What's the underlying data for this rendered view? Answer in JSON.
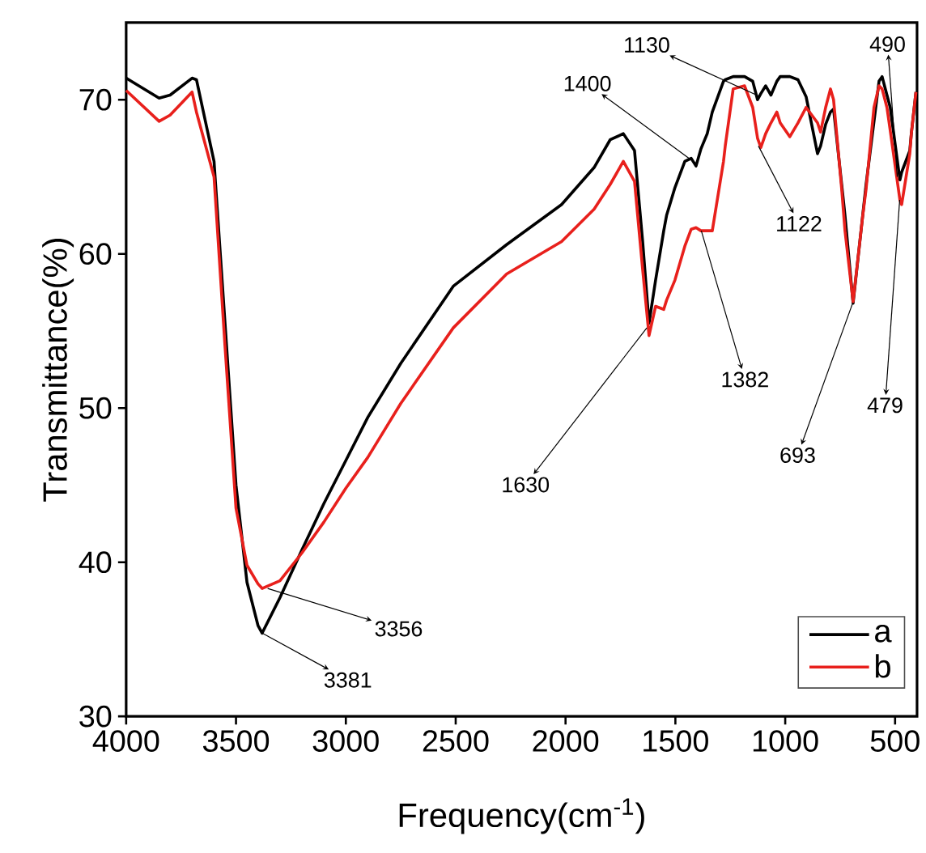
{
  "chart_data": {
    "type": "line",
    "xlabel": "Frequency(cm$^{-1}$)",
    "ylabel": "Transmittance(%)",
    "xlim": [
      4000,
      400
    ],
    "ylim": [
      30,
      75
    ],
    "xticks": [
      4000,
      3500,
      3000,
      2500,
      2000,
      1500,
      1000,
      500
    ],
    "yticks": [
      30,
      40,
      50,
      60,
      70
    ],
    "grid": false,
    "legend": "bottom right",
    "marker": "none",
    "line_style": "solid",
    "x": [
      4000,
      3850,
      3800,
      3700,
      3680,
      3600,
      3550,
      3500,
      3450,
      3400,
      3381,
      3300,
      3200,
      3100,
      3000,
      2900,
      2750,
      2511,
      2268,
      2018,
      1870,
      1797,
      1737,
      1686,
      1649,
      1620,
      1590,
      1553,
      1540,
      1502,
      1457,
      1428,
      1406,
      1384,
      1355,
      1332,
      1281,
      1273,
      1237,
      1185,
      1148,
      1126,
      1111,
      1089,
      1065,
      1038,
      1023,
      979,
      942,
      905,
      853,
      839,
      816,
      794,
      780,
      743,
      728,
      691,
      647,
      632,
      596,
      573,
      559,
      537,
      522,
      478,
      470,
      433,
      426,
      405
    ],
    "series": [
      {
        "name": "a",
        "color": "#000000",
        "values": [
          71.4,
          70.1,
          70.3,
          71.4,
          71.3,
          66,
          55.5,
          45,
          38.7,
          35.9,
          35.4,
          37.7,
          40.8,
          43.8,
          46.6,
          49.4,
          52.9,
          57.9,
          60.6,
          63.2,
          65.6,
          67.4,
          67.8,
          66.7,
          60.8,
          55.5,
          58.3,
          61.5,
          62.5,
          64.3,
          66,
          66.2,
          65.7,
          66.8,
          67.8,
          69.2,
          71.2,
          71.3,
          71.5,
          71.5,
          71.2,
          70,
          70.4,
          70.9,
          70.3,
          71.2,
          71.5,
          71.5,
          71.3,
          70.2,
          66.5,
          67,
          68.4,
          69.2,
          69.4,
          64.5,
          62.5,
          56.8,
          null,
          64.5,
          null,
          71.2,
          71.5,
          70.3,
          69.5,
          64.8,
          65.3,
          66.7,
          67.8,
          70.5
        ]
      },
      {
        "name": "b",
        "color": "#e8201c",
        "values": [
          70.6,
          68.6,
          69,
          70.5,
          69.2,
          65,
          54,
          43.5,
          39.8,
          38.6,
          38.3,
          38.8,
          40.6,
          42.6,
          44.8,
          46.8,
          50.3,
          55.2,
          58.7,
          60.8,
          62.9,
          64.5,
          66,
          64.7,
          59,
          54.7,
          56.6,
          56.4,
          57,
          58.3,
          60.5,
          61.6,
          61.7,
          61.5,
          61.5,
          61.5,
          66,
          67,
          70.7,
          70.9,
          69.5,
          67.5,
          66.9,
          67.8,
          68.5,
          69.2,
          68.5,
          67.6,
          68.5,
          69.5,
          68.5,
          67.9,
          69.5,
          70.7,
          70,
          64.2,
          61.5,
          56.9,
          62.5,
          64.2,
          69.5,
          70.9,
          70.7,
          69.5,
          68,
          63.5,
          63.2,
          66.5,
          67.8,
          70.5
        ]
      }
    ],
    "annotations": [
      {
        "text": "3381",
        "x": 3381,
        "y": 35.4
      },
      {
        "text": "3356",
        "x": 3356,
        "y": 38.3
      },
      {
        "text": "1630",
        "x": 1630,
        "y": 55.2
      },
      {
        "text": "1400",
        "x": 1400,
        "y": 65.8
      },
      {
        "text": "1382",
        "x": 1382,
        "y": 61.5
      },
      {
        "text": "1130",
        "x": 1130,
        "y": 70.3
      },
      {
        "text": "1122",
        "x": 1122,
        "y": 67
      },
      {
        "text": "693",
        "x": 693,
        "y": 56.8
      },
      {
        "text": "490",
        "x": 490,
        "y": 65
      },
      {
        "text": "479",
        "x": 479,
        "y": 63.5
      }
    ]
  }
}
